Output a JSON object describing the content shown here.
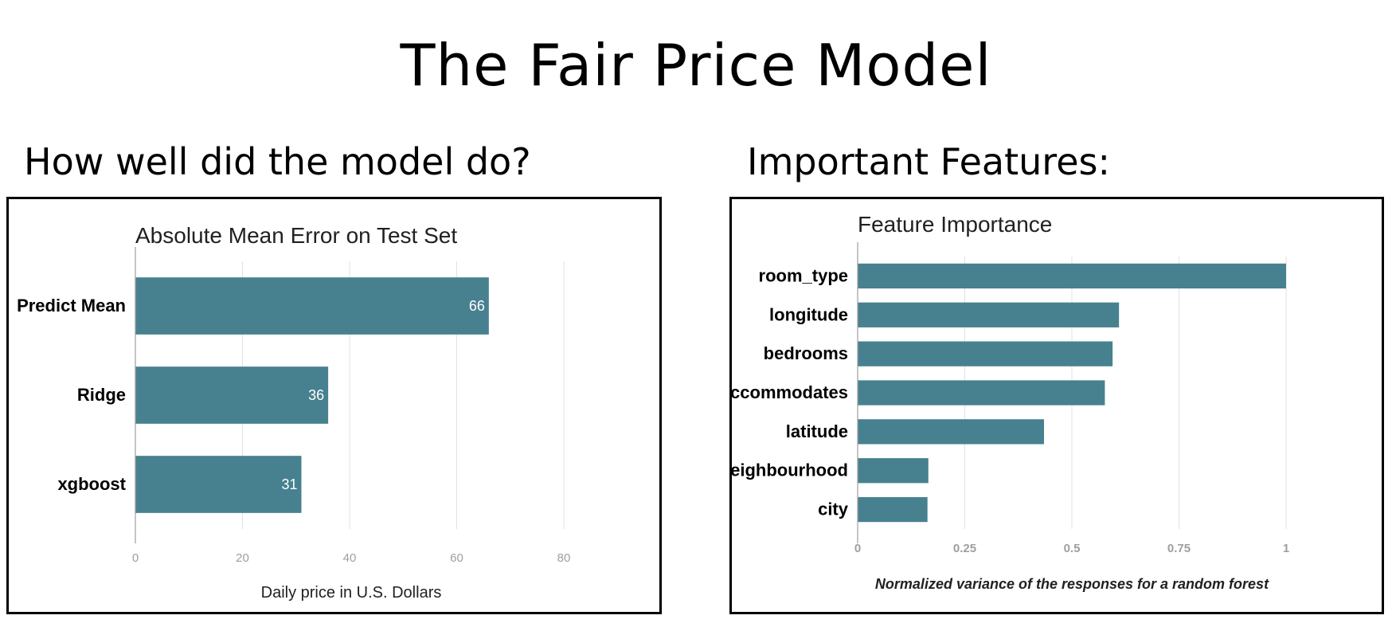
{
  "page": {
    "title": "The Fair Price Model",
    "left_heading": "How well did the model do?",
    "right_heading": "Important Features:"
  },
  "colors": {
    "bar": "#47818f",
    "grid": "#e0e0e0",
    "tick": "#9e9e9e"
  },
  "chart_data": [
    {
      "type": "bar",
      "orientation": "horizontal",
      "title": "Absolute Mean Error on Test Set",
      "categories": [
        "Predict Mean",
        "Ridge",
        "xgboost"
      ],
      "values": [
        66,
        36,
        31
      ],
      "data_labels": [
        "66",
        "36",
        "31"
      ],
      "xlabel": "Daily price in U.S. Dollars",
      "ylabel": "",
      "xlim": [
        0,
        80
      ],
      "xticks": [
        "0",
        "20",
        "40",
        "60",
        "80"
      ],
      "grid": true,
      "legend": "none"
    },
    {
      "type": "bar",
      "orientation": "horizontal",
      "title": "Feature Importance",
      "categories": [
        "room_type",
        "longitude",
        "bedrooms",
        "accommodates",
        "latitude",
        "neighbourhood",
        "city"
      ],
      "values": [
        1.0,
        0.61,
        0.595,
        0.577,
        0.435,
        0.165,
        0.163
      ],
      "xlabel": "Normalized variance of the responses for a random forest",
      "ylabel": "",
      "xlim": [
        0,
        1
      ],
      "xticks": [
        "0",
        "0.25",
        "0.5",
        "0.75",
        "1"
      ],
      "grid": true,
      "legend": "none"
    }
  ]
}
